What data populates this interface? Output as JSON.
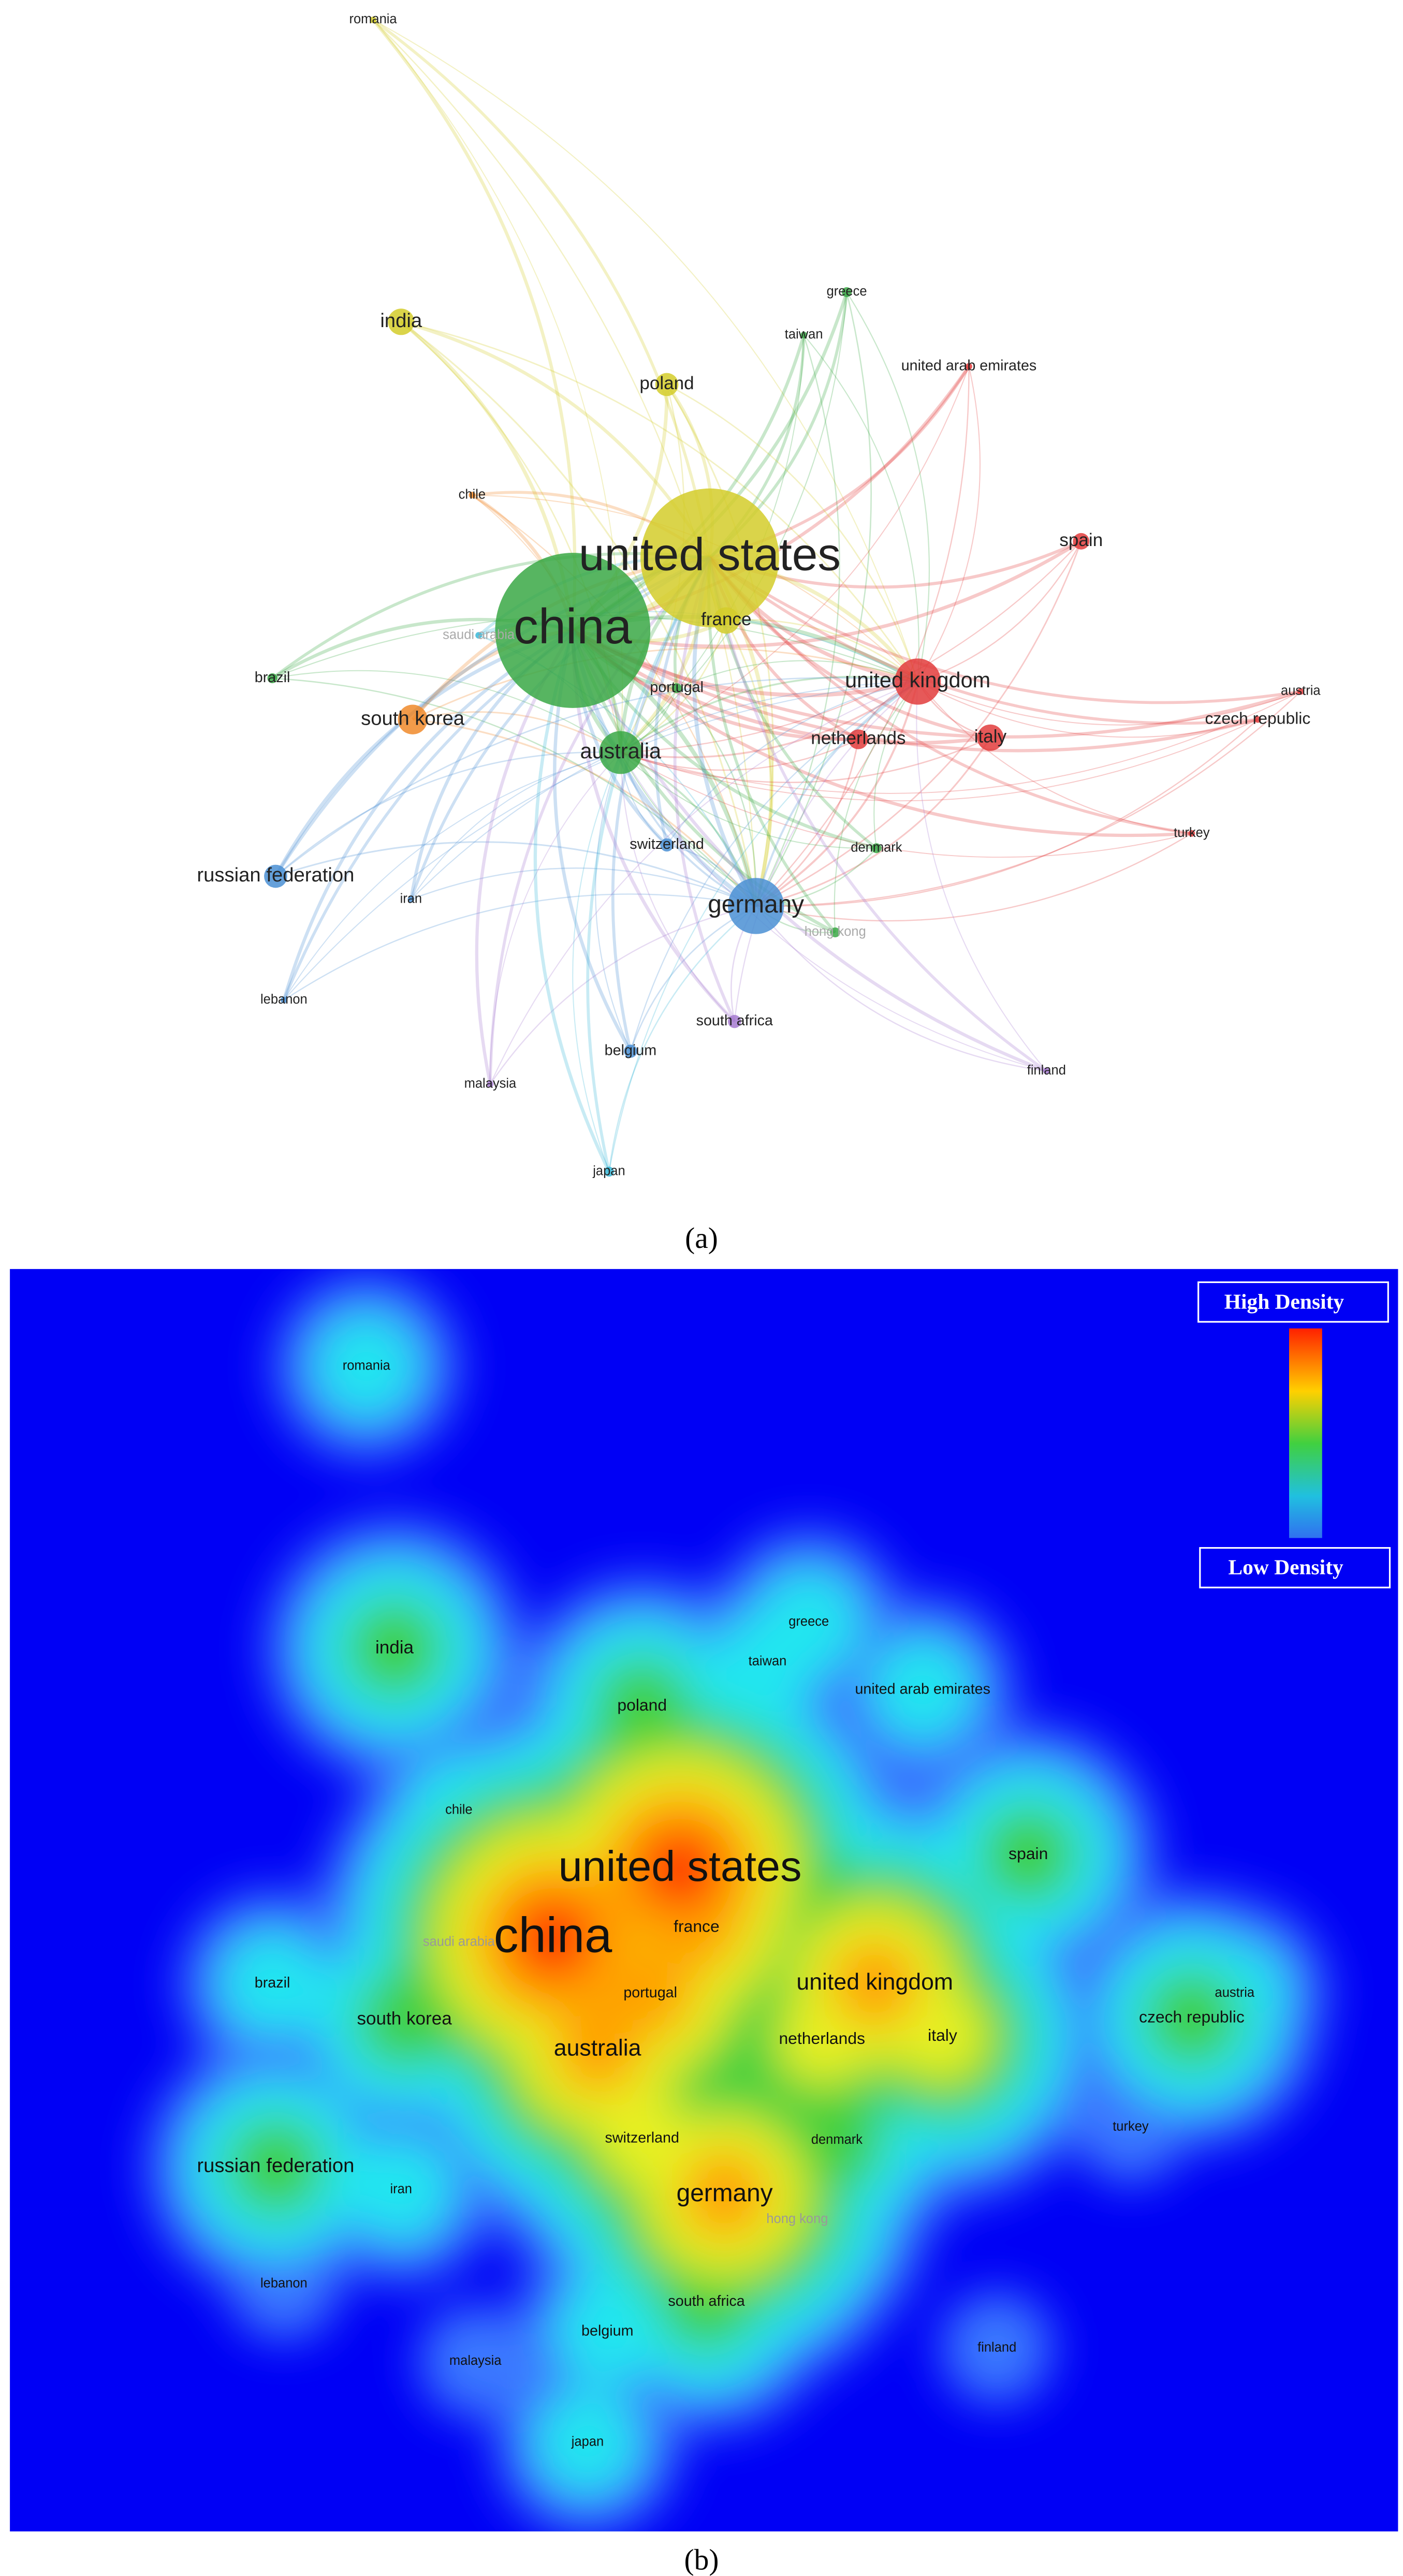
{
  "panel_a": {
    "caption": "(a)"
  },
  "panel_b": {
    "caption": "(b)",
    "legend": {
      "high": "High Density",
      "low": "Low Density"
    }
  },
  "nodes": [
    {
      "label": "romania"
    },
    {
      "label": "india"
    },
    {
      "label": "greece"
    },
    {
      "label": "taiwan"
    },
    {
      "label": "united arab emirates"
    },
    {
      "label": "poland"
    },
    {
      "label": "chile"
    },
    {
      "label": "spain"
    },
    {
      "label": "united states"
    },
    {
      "label": "china"
    },
    {
      "label": "france"
    },
    {
      "label": "saudi arabia"
    },
    {
      "label": "brazil"
    },
    {
      "label": "united kingdom"
    },
    {
      "label": "portugal"
    },
    {
      "label": "austria"
    },
    {
      "label": "czech republic"
    },
    {
      "label": "south korea"
    },
    {
      "label": "australia"
    },
    {
      "label": "netherlands"
    },
    {
      "label": "italy"
    },
    {
      "label": "turkey"
    },
    {
      "label": "switzerland"
    },
    {
      "label": "denmark"
    },
    {
      "label": "russian federation"
    },
    {
      "label": "germany"
    },
    {
      "label": "iran"
    },
    {
      "label": "hong kong"
    },
    {
      "label": "lebanon"
    },
    {
      "label": "belgium"
    },
    {
      "label": "south africa"
    },
    {
      "label": "malaysia"
    },
    {
      "label": "finland"
    },
    {
      "label": "japan"
    }
  ]
}
